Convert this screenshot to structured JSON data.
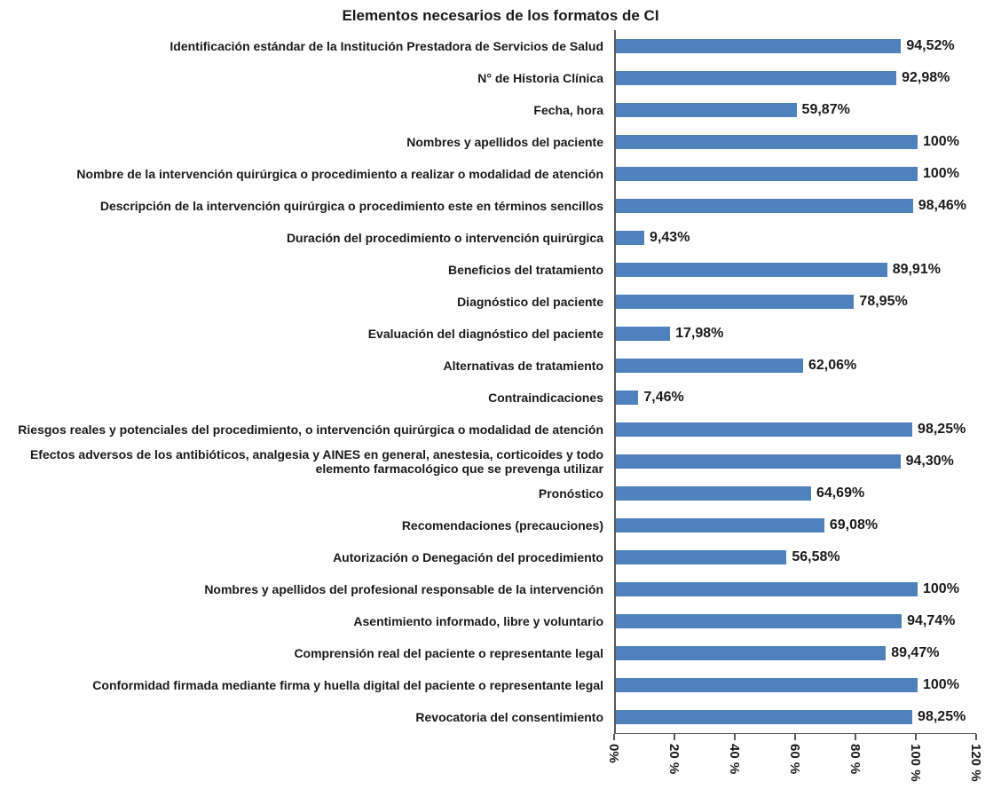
{
  "title": "Elementos necesarios de los formatos de CI",
  "chart_data": {
    "type": "bar",
    "orientation": "horizontal",
    "title": "Elementos necesarios de los formatos de CI",
    "bar_color": "#4F81BD",
    "axis_color": "#595959",
    "xlim": [
      0,
      120
    ],
    "x_ticks": [
      0,
      20,
      40,
      60,
      80,
      100,
      120
    ],
    "x_tick_labels": [
      "0%",
      "20 %",
      "40 %",
      "60 %",
      "80 %",
      "100 %",
      "120 %"
    ],
    "categories": [
      "Identificación estándar de la Institución Prestadora de Servicios de Salud",
      "N° de Historia Clínica",
      "Fecha, hora",
      "Nombres y apellidos del paciente",
      "Nombre de la intervención quirúrgica o procedimiento a realizar o modalidad de atención",
      "Descripción de la intervención quirúrgica o procedimiento este en términos sencillos",
      "Duración del procedimiento o intervención quirúrgica",
      "Beneficios del tratamiento",
      "Diagnóstico del paciente",
      "Evaluación del diagnóstico del paciente",
      "Alternativas de tratamiento",
      "Contraindicaciones",
      "Riesgos reales y potenciales del procedimiento, o intervención quirúrgica o modalidad de atención",
      "Efectos adversos de los antibióticos, analgesia y AINES en general, anestesia, corticoides y todo elemento farmacológico que se prevenga utilizar",
      "Pronóstico",
      "Recomendaciones (precauciones)",
      "Autorización o Denegación del procedimiento",
      "Nombres y apellidos del profesional responsable de la intervención",
      "Asentimiento informado, libre y voluntario",
      "Comprensión real del paciente o representante legal",
      "Conformidad firmada mediante firma y huella digital del paciente o representante legal",
      "Revocatoria del consentimiento"
    ],
    "values": [
      94.52,
      92.98,
      59.87,
      100,
      100,
      98.46,
      9.43,
      89.91,
      78.95,
      17.98,
      62.06,
      7.46,
      98.25,
      94.3,
      64.69,
      69.08,
      56.58,
      100,
      94.74,
      89.47,
      100,
      98.25
    ],
    "value_labels": [
      "94,52%",
      "92,98%",
      "59,87%",
      "100%",
      "100%",
      "98,46%",
      "9,43%",
      "89,91%",
      "78,95%",
      "17,98%",
      "62,06%",
      "7,46%",
      "98,25%",
      "94,30%",
      "64,69%",
      "69,08%",
      "56,58%",
      "100%",
      "94,74%",
      "89,47%",
      "100%",
      "98,25%"
    ]
  }
}
